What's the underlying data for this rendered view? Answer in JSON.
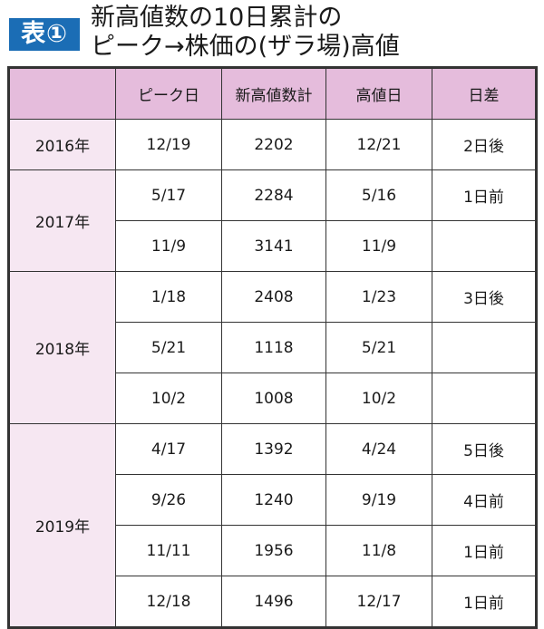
{
  "badge": "表①",
  "title": {
    "line1": "新高値数の10日累計の",
    "line2": "ピーク→株価の(ザラ場)高値"
  },
  "colors": {
    "badge": "#1b6db5",
    "header": "#e5bcdc",
    "year_column": "#f6e7f2"
  },
  "table": {
    "headers": [
      "",
      "ピーク日",
      "新高値数計",
      "高値日",
      "日差"
    ],
    "years": [
      {
        "year": "2016年",
        "rows": [
          [
            "12/19",
            "2202",
            "12/21",
            "2日後"
          ]
        ]
      },
      {
        "year": "2017年",
        "rows": [
          [
            "5/17",
            "2284",
            "5/16",
            "1日前"
          ],
          [
            "11/9",
            "3141",
            "11/9",
            ""
          ]
        ]
      },
      {
        "year": "2018年",
        "rows": [
          [
            "1/18",
            "2408",
            "1/23",
            "3日後"
          ],
          [
            "5/21",
            "1118",
            "5/21",
            ""
          ],
          [
            "10/2",
            "1008",
            "10/2",
            ""
          ]
        ]
      },
      {
        "year": "2019年",
        "rows": [
          [
            "4/17",
            "1392",
            "4/24",
            "5日後"
          ],
          [
            "9/26",
            "1240",
            "9/19",
            "4日前"
          ],
          [
            "11/11",
            "1956",
            "11/8",
            "1日前"
          ],
          [
            "12/18",
            "1496",
            "12/17",
            "1日前"
          ]
        ]
      }
    ]
  }
}
